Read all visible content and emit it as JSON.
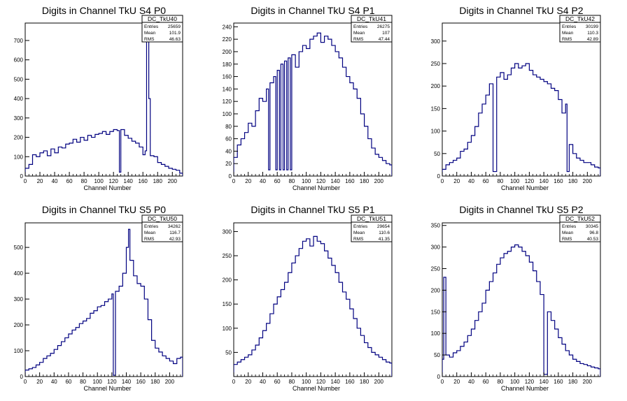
{
  "colors": {
    "histogram_line": "#000080",
    "axis": "#000000",
    "background": "#ffffff"
  },
  "chart_data": [
    {
      "type": "bar",
      "title": "Digits in Channel TkU S4 P0",
      "xlabel": "Channel Number",
      "ylabel": "",
      "xlim": [
        0,
        214
      ],
      "ylim": [
        0,
        790
      ],
      "xticks": [
        0,
        20,
        40,
        60,
        80,
        100,
        120,
        140,
        160,
        180,
        200
      ],
      "yticks": [
        0,
        100,
        200,
        300,
        400,
        500,
        600,
        700
      ],
      "stats": {
        "name": "DC_TkU40",
        "entries": "25659",
        "mean": "101.9",
        "rms": "46.63"
      },
      "categories": [
        0,
        5,
        10,
        15,
        20,
        25,
        30,
        35,
        40,
        45,
        50,
        55,
        60,
        65,
        70,
        75,
        80,
        85,
        90,
        95,
        100,
        105,
        110,
        115,
        120,
        125,
        128,
        130,
        135,
        140,
        145,
        150,
        155,
        160,
        163,
        165,
        168,
        170,
        175,
        180,
        185,
        190,
        195,
        200,
        205,
        210
      ],
      "values": [
        40,
        60,
        110,
        100,
        120,
        130,
        105,
        140,
        120,
        150,
        145,
        165,
        170,
        190,
        175,
        200,
        185,
        210,
        200,
        215,
        220,
        230,
        215,
        230,
        240,
        235,
        20,
        240,
        210,
        195,
        180,
        170,
        150,
        110,
        130,
        730,
        400,
        105,
        100,
        70,
        60,
        50,
        40,
        35,
        30,
        15
      ]
    },
    {
      "type": "bar",
      "title": "Digits in Channel TkU S4 P1",
      "xlabel": "Channel Number",
      "ylabel": "",
      "xlim": [
        0,
        218
      ],
      "ylim": [
        0,
        246
      ],
      "xticks": [
        0,
        20,
        40,
        60,
        80,
        100,
        120,
        140,
        160,
        180,
        200
      ],
      "yticks": [
        0,
        20,
        40,
        60,
        80,
        100,
        120,
        140,
        160,
        180,
        200,
        220,
        240
      ],
      "stats": {
        "name": "DC_TkU41",
        "entries": "26275",
        "mean": "107",
        "rms": "47.44"
      },
      "categories": [
        0,
        5,
        10,
        15,
        20,
        25,
        30,
        35,
        40,
        45,
        48,
        50,
        55,
        58,
        60,
        63,
        65,
        68,
        70,
        73,
        75,
        78,
        80,
        85,
        90,
        95,
        100,
        105,
        110,
        115,
        120,
        125,
        130,
        135,
        140,
        145,
        150,
        155,
        160,
        165,
        170,
        175,
        180,
        185,
        190,
        195,
        200,
        205,
        210,
        215
      ],
      "values": [
        30,
        50,
        60,
        70,
        85,
        80,
        105,
        125,
        120,
        140,
        10,
        150,
        160,
        10,
        170,
        10,
        180,
        10,
        185,
        10,
        190,
        10,
        195,
        175,
        200,
        210,
        205,
        220,
        225,
        230,
        215,
        225,
        220,
        210,
        200,
        190,
        175,
        160,
        150,
        140,
        125,
        100,
        80,
        60,
        45,
        35,
        30,
        25,
        20,
        18
      ]
    },
    {
      "type": "bar",
      "title": "Digits in Channel TkU S4 P2",
      "xlabel": "Channel Number",
      "ylabel": "",
      "xlim": [
        0,
        218
      ],
      "ylim": [
        0,
        340
      ],
      "xticks": [
        0,
        20,
        40,
        60,
        80,
        100,
        120,
        140,
        160,
        180,
        200
      ],
      "yticks": [
        0,
        50,
        100,
        150,
        200,
        250,
        300
      ],
      "stats": {
        "name": "DC_TkU42",
        "entries": "30199",
        "mean": "110.3",
        "rms": "42.89"
      },
      "categories": [
        0,
        5,
        10,
        15,
        20,
        25,
        30,
        35,
        40,
        45,
        50,
        55,
        60,
        65,
        70,
        75,
        80,
        85,
        90,
        95,
        100,
        105,
        110,
        115,
        120,
        125,
        130,
        135,
        140,
        145,
        150,
        155,
        160,
        165,
        170,
        172,
        175,
        180,
        185,
        190,
        195,
        200,
        205,
        210,
        215
      ],
      "values": [
        15,
        25,
        30,
        35,
        40,
        55,
        60,
        75,
        90,
        110,
        140,
        160,
        180,
        205,
        10,
        220,
        230,
        215,
        225,
        240,
        250,
        240,
        245,
        250,
        235,
        225,
        220,
        215,
        210,
        205,
        195,
        190,
        170,
        140,
        160,
        10,
        70,
        50,
        40,
        35,
        30,
        30,
        25,
        20,
        18
      ]
    },
    {
      "type": "bar",
      "title": "Digits in Channel TkU S5 P0",
      "xlabel": "Channel Number",
      "ylabel": "",
      "xlim": [
        0,
        218
      ],
      "ylim": [
        0,
        595
      ],
      "xticks": [
        0,
        20,
        40,
        60,
        80,
        100,
        120,
        140,
        160,
        180,
        200
      ],
      "yticks": [
        0,
        100,
        200,
        300,
        400,
        500
      ],
      "stats": {
        "name": "DC_TkU50",
        "entries": "34262",
        "mean": "116.7",
        "rms": "42.93"
      },
      "categories": [
        0,
        5,
        10,
        15,
        20,
        25,
        30,
        35,
        40,
        45,
        50,
        55,
        60,
        65,
        70,
        75,
        80,
        85,
        90,
        95,
        100,
        105,
        110,
        115,
        120,
        122,
        125,
        130,
        135,
        140,
        143,
        145,
        150,
        155,
        160,
        165,
        170,
        175,
        180,
        185,
        190,
        195,
        200,
        205,
        210,
        215
      ],
      "values": [
        25,
        30,
        35,
        45,
        55,
        70,
        80,
        90,
        105,
        120,
        135,
        150,
        165,
        180,
        190,
        205,
        215,
        225,
        245,
        255,
        270,
        275,
        290,
        300,
        320,
        5,
        330,
        350,
        400,
        500,
        570,
        450,
        390,
        360,
        350,
        300,
        220,
        140,
        110,
        95,
        80,
        70,
        60,
        50,
        70,
        75
      ]
    },
    {
      "type": "bar",
      "title": "Digits in Channel TkU S5 P1",
      "xlabel": "Channel Number",
      "ylabel": "",
      "xlim": [
        0,
        218
      ],
      "ylim": [
        0,
        318
      ],
      "xticks": [
        0,
        20,
        40,
        60,
        80,
        100,
        120,
        140,
        160,
        180,
        200
      ],
      "yticks": [
        50,
        100,
        150,
        200,
        250,
        300
      ],
      "stats": {
        "name": "DC_TkU51",
        "entries": "29654",
        "mean": "110.6",
        "rms": "41.35"
      },
      "categories": [
        0,
        5,
        10,
        15,
        20,
        25,
        30,
        35,
        40,
        45,
        50,
        55,
        60,
        65,
        70,
        75,
        80,
        85,
        90,
        95,
        100,
        105,
        110,
        115,
        120,
        125,
        130,
        135,
        140,
        145,
        150,
        155,
        160,
        165,
        170,
        175,
        180,
        185,
        190,
        195,
        200,
        205,
        210,
        215
      ],
      "values": [
        25,
        30,
        35,
        40,
        45,
        55,
        65,
        80,
        95,
        110,
        130,
        150,
        165,
        180,
        195,
        215,
        235,
        250,
        265,
        280,
        285,
        270,
        290,
        280,
        275,
        260,
        245,
        230,
        215,
        195,
        175,
        160,
        140,
        120,
        100,
        85,
        70,
        60,
        50,
        45,
        40,
        35,
        30,
        28
      ]
    },
    {
      "type": "bar",
      "title": "Digits in Channel TkU S5 P2",
      "xlabel": "Channel Number",
      "ylabel": "",
      "xlim": [
        0,
        218
      ],
      "ylim": [
        0,
        356
      ],
      "xticks": [
        0,
        20,
        40,
        60,
        80,
        100,
        120,
        140,
        160,
        180,
        200
      ],
      "yticks": [
        0,
        50,
        100,
        150,
        200,
        250,
        300,
        350
      ],
      "stats": {
        "name": "DC_TkU52",
        "entries": "30345",
        "mean": "96.8",
        "rms": "40.53"
      },
      "categories": [
        0,
        2,
        5,
        10,
        15,
        20,
        25,
        30,
        35,
        40,
        45,
        50,
        55,
        60,
        65,
        70,
        75,
        80,
        85,
        90,
        95,
        100,
        105,
        110,
        115,
        120,
        125,
        130,
        135,
        140,
        145,
        150,
        155,
        160,
        165,
        170,
        175,
        180,
        185,
        190,
        195,
        200,
        205,
        210,
        215
      ],
      "values": [
        40,
        230,
        50,
        45,
        55,
        60,
        70,
        80,
        95,
        110,
        130,
        150,
        170,
        200,
        220,
        240,
        260,
        275,
        285,
        290,
        300,
        305,
        300,
        290,
        280,
        265,
        245,
        220,
        190,
        5,
        150,
        130,
        110,
        90,
        75,
        60,
        50,
        40,
        35,
        30,
        28,
        25,
        22,
        20,
        18
      ]
    }
  ]
}
